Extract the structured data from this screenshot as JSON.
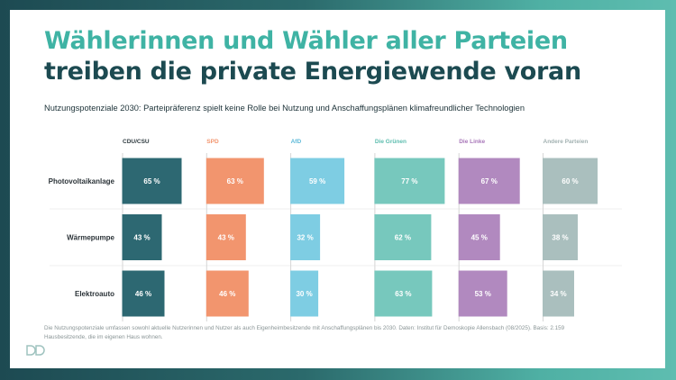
{
  "title_line1": "Wählerinnen und Wähler aller Parteien",
  "title_line2": "treiben die private Energiewende voran",
  "footnote": "Die Nutzungspotenziale umfassen sowohl aktuelle Nutzerinnen und Nutzer als auch Eigenheimbesitzende mit Anschaffungsplänen bis 2030. Daten: Institut für Demoskopie Allensbach (08/2025). Basis: 2.159 Hausbesitzende, die im eigenen Haus wohnen.",
  "logo_text": "DD",
  "chart_data": {
    "type": "bar",
    "orientation": "horizontal",
    "layout": "small-multiples",
    "title": "Nutzungspotenziale 2030: Parteipräferenz spielt keine Rolle bei Nutzung und Anschaffungsplänen klimafreundlicher Technologien",
    "categories": [
      "Photovoltaikanlage",
      "Wärmepumpe",
      "Elektroauto"
    ],
    "unit": "%",
    "xlim": [
      0,
      100
    ],
    "grid": false,
    "series": [
      {
        "name": "CDU/CSU",
        "values": [
          65,
          43,
          46
        ],
        "color": "#2d6872",
        "label_color": "#2f3b40",
        "text_color": "#ffffff"
      },
      {
        "name": "SPD",
        "values": [
          63,
          43,
          46
        ],
        "color": "#f2956e",
        "label_color": "#f2956e",
        "text_color": "#ffffff"
      },
      {
        "name": "AfD",
        "values": [
          59,
          32,
          30
        ],
        "color": "#7ecde3",
        "label_color": "#5cb9d8",
        "text_color": "#ffffff"
      },
      {
        "name": "Die Grünen",
        "values": [
          77,
          62,
          63
        ],
        "color": "#77c8bd",
        "label_color": "#5dbdaf",
        "text_color": "#ffffff"
      },
      {
        "name": "Die Linke",
        "values": [
          67,
          45,
          53
        ],
        "color": "#b189bf",
        "label_color": "#a877b9",
        "text_color": "#ffffff"
      },
      {
        "name": "Andere Parteien",
        "values": [
          60,
          38,
          34
        ],
        "color": "#aabfbe",
        "label_color": "#a3b2b2",
        "text_color": "#ffffff"
      }
    ]
  }
}
